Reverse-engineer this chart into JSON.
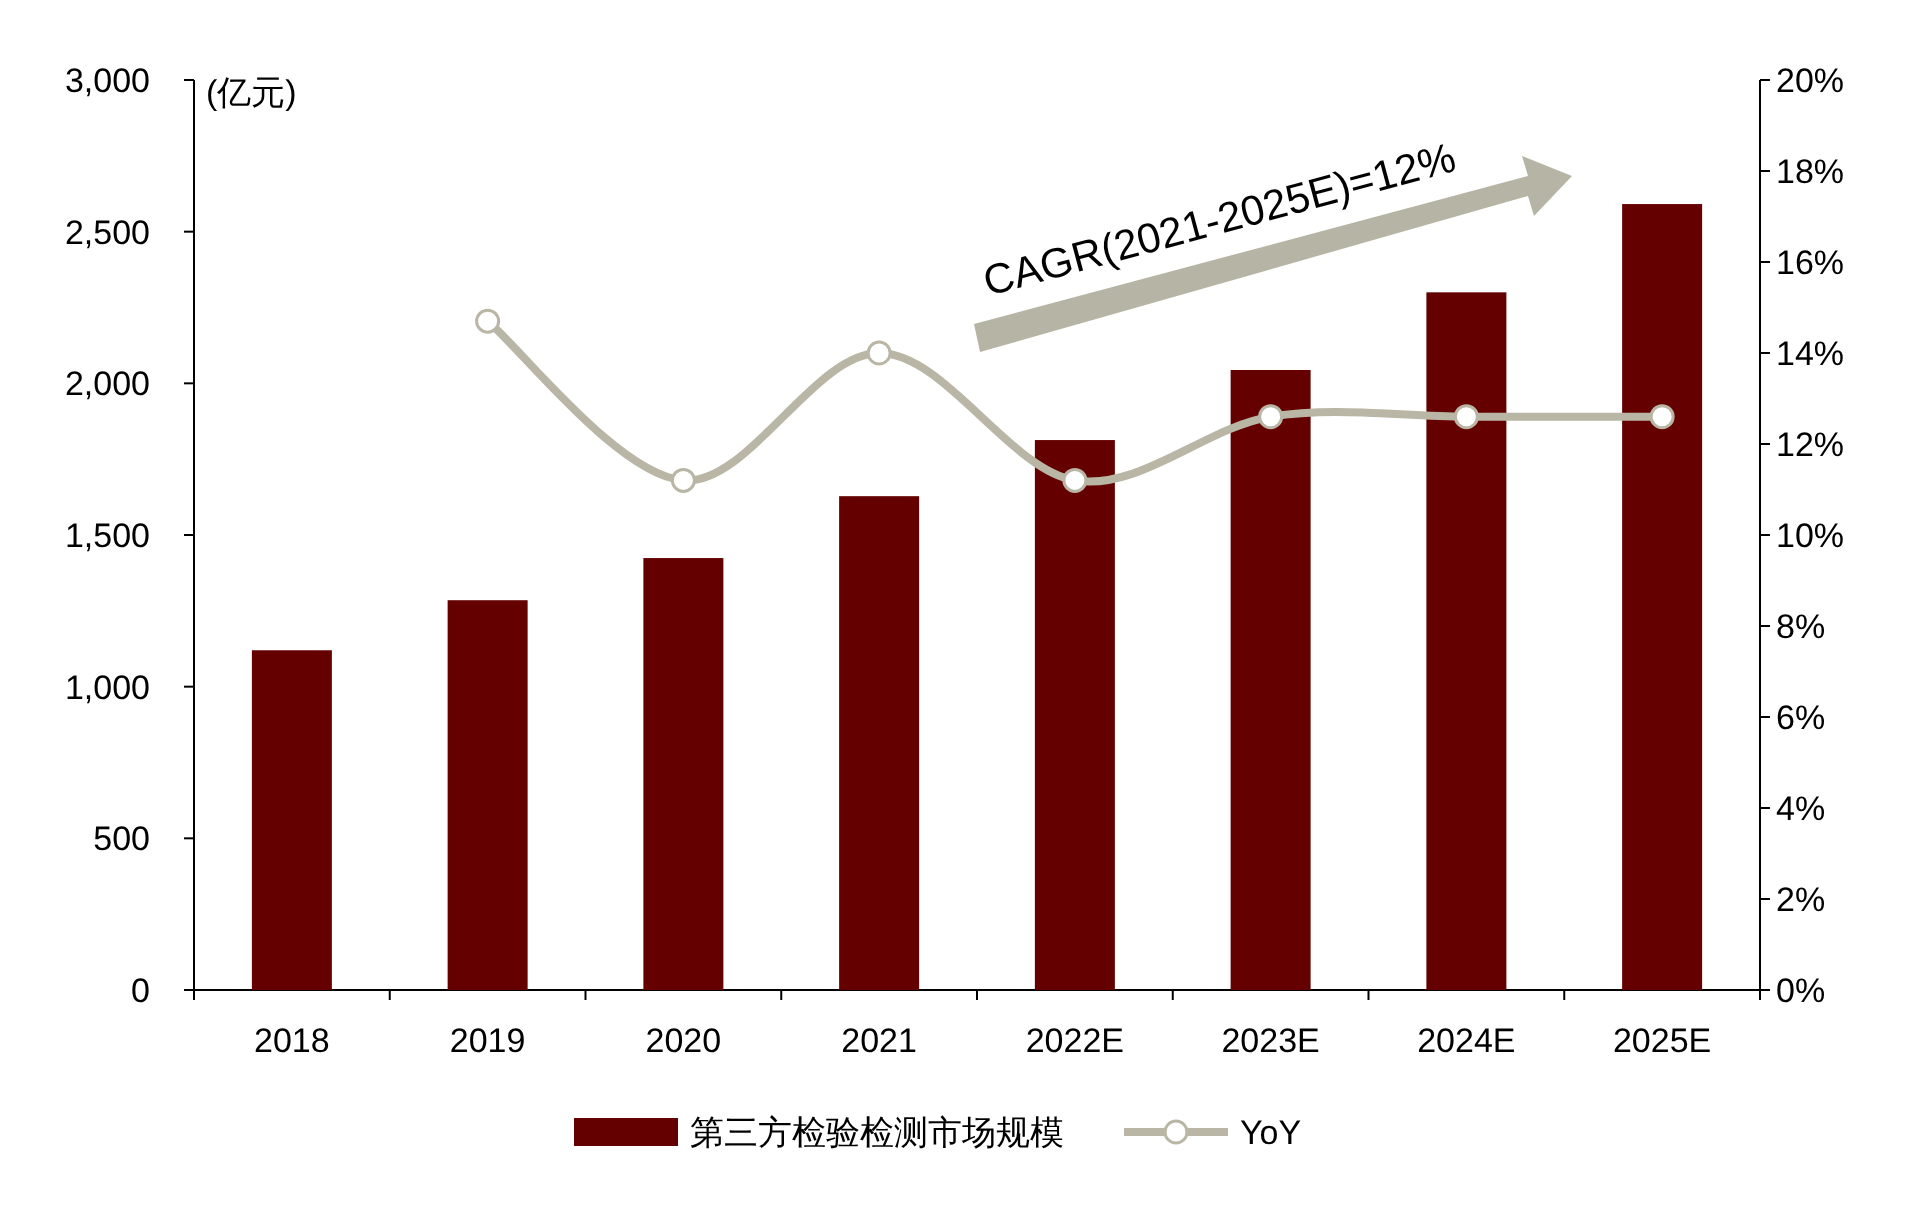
{
  "chart_data": {
    "type": "bar",
    "categories": [
      "2018",
      "2019",
      "2020",
      "2021",
      "2022E",
      "2023E",
      "2024E",
      "2025E"
    ],
    "series": [
      {
        "name": "第三方检验检测市场规模",
        "color": "#640000",
        "values": [
          1120,
          1285,
          1424,
          1628,
          1813,
          2044,
          2300,
          2591
        ]
      },
      {
        "name": "YoY",
        "type": "line",
        "axis": "y2",
        "color": "#b9b6a5",
        "marker": "circle",
        "line_style": "solid",
        "values": [
          null,
          14.7,
          11.2,
          14.0,
          11.2,
          12.6,
          12.6,
          12.6
        ]
      }
    ],
    "ylabel": "(亿元)",
    "ylim": [
      0,
      3000
    ],
    "yticks": [
      0,
      500,
      {
        "value": 1000,
        "label": "1,000"
      },
      {
        "value": 1500,
        "label": "1,500"
      },
      {
        "value": 2000,
        "label": "2,000"
      },
      {
        "value": 2500,
        "label": "2,500"
      },
      {
        "value": 3000,
        "label": "3,000"
      }
    ],
    "y2lim": [
      0,
      20
    ],
    "y2ticks": [
      {
        "value": 0,
        "label": "0%"
      },
      {
        "value": 2,
        "label": "2%"
      },
      {
        "value": 4,
        "label": "4%"
      },
      {
        "value": 6,
        "label": "6%"
      },
      {
        "value": 8,
        "label": "8%"
      },
      {
        "value": 10,
        "label": "10%"
      },
      {
        "value": 12,
        "label": "12%"
      },
      {
        "value": 14,
        "label": "14%"
      },
      {
        "value": 16,
        "label": "16%"
      },
      {
        "value": 18,
        "label": "18%"
      },
      {
        "value": 20,
        "label": "20%"
      }
    ],
    "annotations": [
      "CAGR(2021-2025E)=12%"
    ],
    "grid": false,
    "legend": "bottom"
  }
}
